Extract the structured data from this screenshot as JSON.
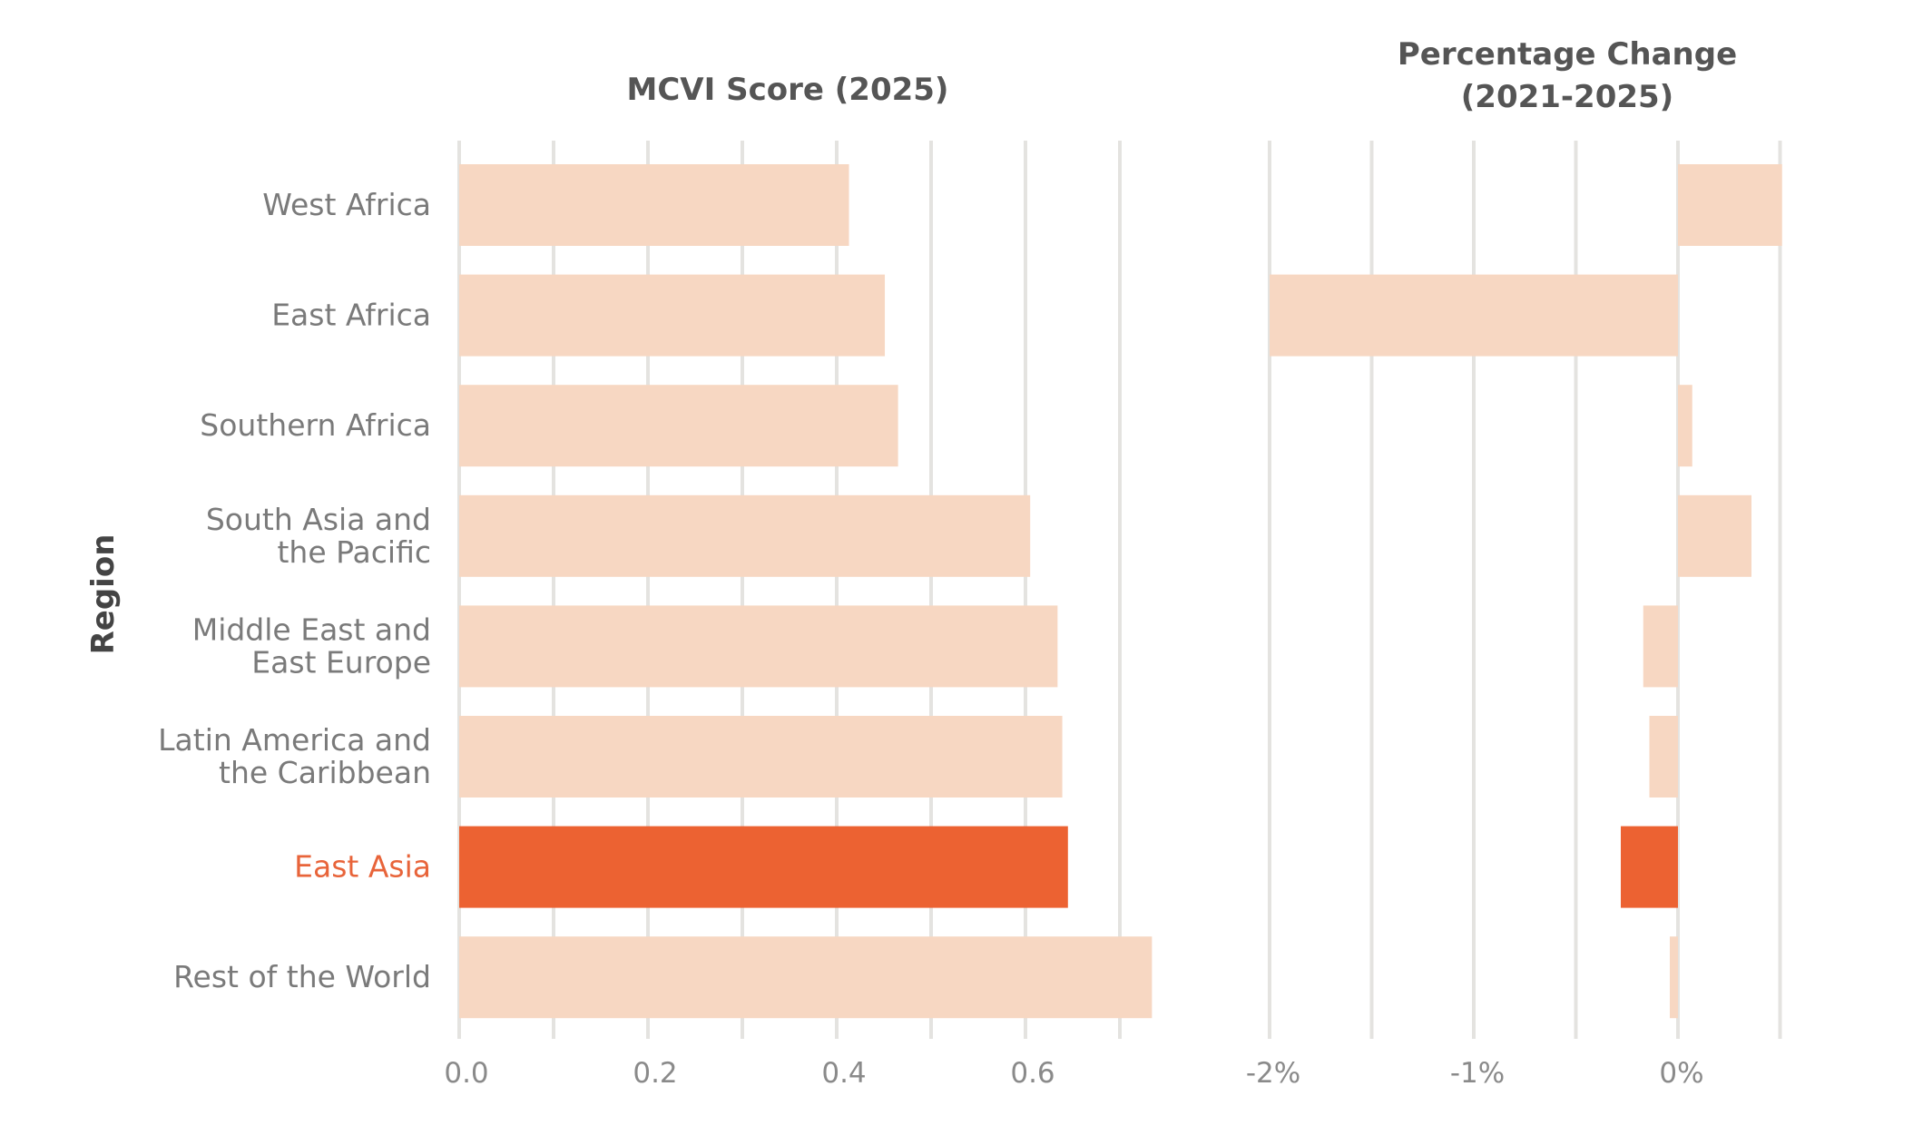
{
  "colors": {
    "normal": "#f7d7c2",
    "highlight": "#ec6232",
    "grid": "#e4e3e0",
    "label": "#7a7a7a",
    "title": "#555555"
  },
  "chart_data": [
    {
      "type": "bar",
      "orientation": "horizontal",
      "title": "MCVI Score (2025)",
      "ylabel": "Region",
      "xlabel": "",
      "categories": [
        "West Africa",
        "East Africa",
        "Southern Africa",
        "South Asia and the Pacific",
        "Middle East and East Europe",
        "Latin America and the Caribbean",
        "East Asia",
        "Rest of the World"
      ],
      "category_lines": [
        [
          "West Africa"
        ],
        [
          "East Africa"
        ],
        [
          "Southern Africa"
        ],
        [
          "South Asia and",
          "the Pacific"
        ],
        [
          "Middle East and",
          "East Europe"
        ],
        [
          "Latin America and",
          "the Caribbean"
        ],
        [
          "East Asia"
        ],
        [
          "Rest of the World"
        ]
      ],
      "values": [
        0.413,
        0.451,
        0.465,
        0.605,
        0.634,
        0.639,
        0.645,
        0.734
      ],
      "highlight": "East Asia",
      "xlim": [
        0,
        0.78
      ],
      "ticks": [
        0,
        0.2,
        0.4,
        0.6
      ],
      "tick_labels": [
        "0.0",
        "0.2",
        "0.4",
        "0.6"
      ],
      "gridlines": [
        0,
        0.1,
        0.2,
        0.3,
        0.4,
        0.5,
        0.6,
        0.7
      ]
    },
    {
      "type": "bar",
      "orientation": "horizontal",
      "title": [
        "Percentage Change",
        "(2021-2025)"
      ],
      "xlabel": "",
      "categories": [
        "West Africa",
        "East Africa",
        "Southern Africa",
        "South Asia and the Pacific",
        "Middle East and East Europe",
        "Latin America and the Caribbean",
        "East Asia",
        "Rest of the World"
      ],
      "values": [
        0.51,
        -2.0,
        0.07,
        0.36,
        -0.17,
        -0.14,
        -0.28,
        -0.04
      ],
      "unit": "%",
      "highlight": "East Asia",
      "xlim": [
        -2.05,
        0.55
      ],
      "ticks": [
        -2,
        -1,
        0
      ],
      "tick_labels": [
        "-2%",
        "-1%",
        "0%"
      ],
      "gridlines": [
        -2,
        -1.5,
        -1,
        -0.5,
        0,
        0.5
      ]
    }
  ]
}
